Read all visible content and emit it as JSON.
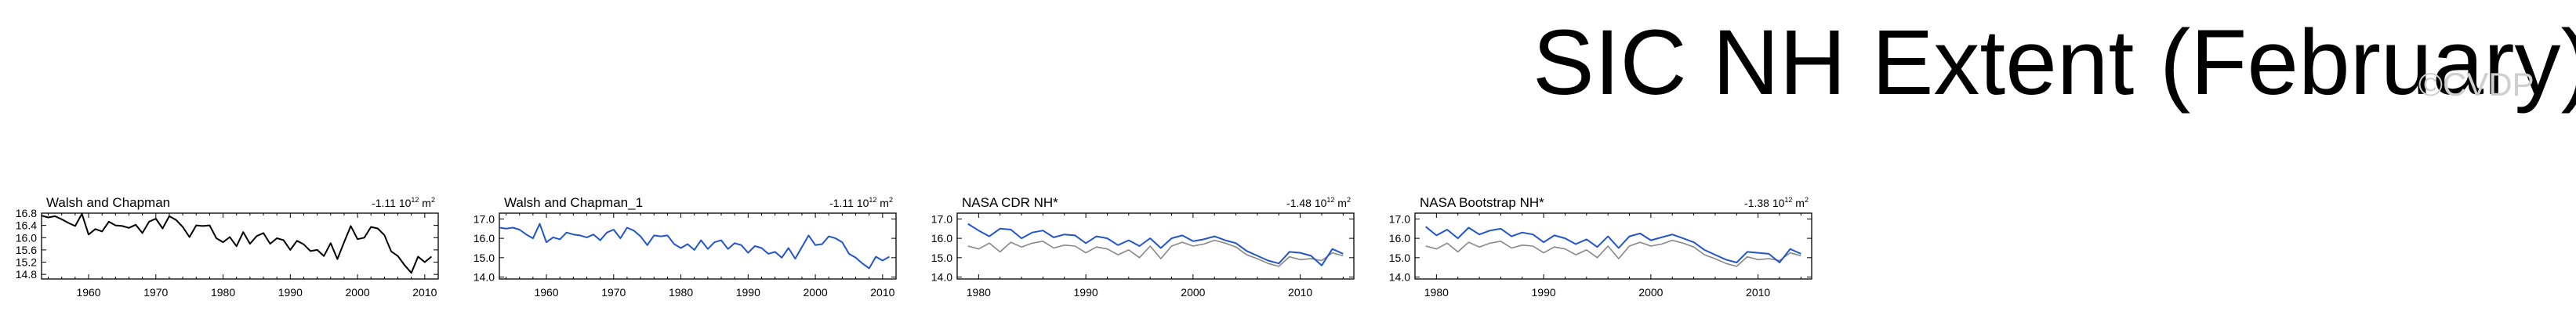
{
  "page": {
    "title": "SIC NH Extent (February)",
    "watermark": "©CVDP"
  },
  "chart_data": [
    {
      "type": "line",
      "title": "Walsh and Chapman",
      "trend": "-1.11 10",
      "trend_exp": "12",
      "trend_unit": "m",
      "trend_unit_exp": "2",
      "xlim": [
        1953,
        2012
      ],
      "ylim": [
        14.65,
        16.8
      ],
      "xticks": [
        1960,
        1970,
        1980,
        1990,
        2000,
        2010
      ],
      "yticks": [
        "16.8",
        "16.4",
        "16.0",
        "15.6",
        "15.2",
        "14.8"
      ],
      "series": [
        {
          "color": "#000000",
          "x": [
            1953,
            1954,
            1955,
            1956,
            1957,
            1958,
            1959,
            1960,
            1961,
            1962,
            1963,
            1964,
            1965,
            1966,
            1967,
            1968,
            1969,
            1970,
            1971,
            1972,
            1973,
            1974,
            1975,
            1976,
            1977,
            1978,
            1979,
            1980,
            1981,
            1982,
            1983,
            1984,
            1985,
            1986,
            1987,
            1988,
            1989,
            1990,
            1991,
            1992,
            1993,
            1994,
            1995,
            1996,
            1997,
            1998,
            1999,
            2000,
            2001,
            2002,
            2003,
            2004,
            2005,
            2006,
            2007,
            2008,
            2009,
            2010,
            2011
          ],
          "y": [
            16.72,
            16.66,
            16.7,
            16.6,
            16.48,
            16.38,
            16.78,
            16.1,
            16.28,
            16.2,
            16.52,
            16.4,
            16.38,
            16.32,
            16.42,
            16.15,
            16.52,
            16.62,
            16.3,
            16.7,
            16.58,
            16.35,
            16.02,
            16.4,
            16.38,
            16.4,
            15.98,
            15.85,
            16.02,
            15.72,
            16.18,
            15.8,
            16.05,
            16.15,
            15.8,
            15.98,
            15.92,
            15.6,
            15.9,
            15.78,
            15.56,
            15.6,
            15.4,
            15.82,
            15.3,
            15.85,
            16.38,
            15.95,
            16.0,
            16.35,
            16.3,
            16.08,
            15.55,
            15.4,
            15.1,
            14.85,
            15.38,
            15.2,
            15.38
          ]
        }
      ]
    },
    {
      "type": "line",
      "title": "Walsh and Chapman_1",
      "trend": "-1.11 10",
      "trend_exp": "12",
      "trend_unit": "m",
      "trend_unit_exp": "2",
      "xlim": [
        1953,
        2012
      ],
      "ylim": [
        13.9,
        17.3
      ],
      "xticks": [
        1960,
        1970,
        1980,
        1990,
        2000,
        2010
      ],
      "yticks": [
        "17.0",
        "16.0",
        "15.0",
        "14.0"
      ],
      "series": [
        {
          "color": "#2255cc",
          "x": [
            1953,
            1954,
            1955,
            1956,
            1957,
            1958,
            1959,
            1960,
            1961,
            1962,
            1963,
            1964,
            1965,
            1966,
            1967,
            1968,
            1969,
            1970,
            1971,
            1972,
            1973,
            1974,
            1975,
            1976,
            1977,
            1978,
            1979,
            1980,
            1981,
            1982,
            1983,
            1984,
            1985,
            1986,
            1987,
            1988,
            1989,
            1990,
            1991,
            1992,
            1993,
            1994,
            1995,
            1996,
            1997,
            1998,
            1999,
            2000,
            2001,
            2002,
            2003,
            2004,
            2005,
            2006,
            2007,
            2008,
            2009,
            2010,
            2011
          ],
          "y": [
            16.55,
            16.5,
            16.55,
            16.45,
            16.2,
            16.0,
            16.75,
            15.8,
            16.05,
            15.95,
            16.3,
            16.2,
            16.15,
            16.05,
            16.2,
            15.9,
            16.3,
            16.45,
            16.0,
            16.55,
            16.4,
            16.1,
            15.65,
            16.15,
            16.1,
            16.15,
            15.7,
            15.5,
            15.7,
            15.4,
            15.9,
            15.45,
            15.8,
            15.9,
            15.45,
            15.75,
            15.65,
            15.25,
            15.6,
            15.5,
            15.2,
            15.3,
            15.0,
            15.5,
            14.95,
            15.55,
            16.15,
            15.65,
            15.7,
            16.1,
            16.0,
            15.8,
            15.2,
            15.0,
            14.7,
            14.45,
            15.05,
            14.85,
            15.05
          ]
        }
      ]
    },
    {
      "type": "line",
      "title": "NASA CDR NH*",
      "trend": "-1.48 10",
      "trend_exp": "12",
      "trend_unit": "m",
      "trend_unit_exp": "2",
      "xlim": [
        1978,
        2015
      ],
      "ylim": [
        13.9,
        17.3
      ],
      "xticks": [
        1980,
        1990,
        2000,
        2010
      ],
      "yticks": [
        "17.0",
        "16.0",
        "15.0",
        "14.0"
      ],
      "series": [
        {
          "color": "#888888",
          "x": [
            1979,
            1980,
            1981,
            1982,
            1983,
            1984,
            1985,
            1986,
            1987,
            1988,
            1989,
            1990,
            1991,
            1992,
            1993,
            1994,
            1995,
            1996,
            1997,
            1998,
            1999,
            2000,
            2001,
            2002,
            2003,
            2004,
            2005,
            2006,
            2007,
            2008,
            2009,
            2010,
            2011,
            2012,
            2013,
            2014
          ],
          "y": [
            15.6,
            15.45,
            15.75,
            15.3,
            15.8,
            15.55,
            15.75,
            15.85,
            15.5,
            15.65,
            15.6,
            15.25,
            15.55,
            15.45,
            15.15,
            15.4,
            15.0,
            15.6,
            14.95,
            15.6,
            15.8,
            15.6,
            15.7,
            15.9,
            15.75,
            15.55,
            15.15,
            14.95,
            14.7,
            14.55,
            15.05,
            14.9,
            14.95,
            14.85,
            15.25,
            15.1
          ]
        },
        {
          "color": "#2255cc",
          "x": [
            1979,
            1980,
            1981,
            1982,
            1983,
            1984,
            1985,
            1986,
            1987,
            1988,
            1989,
            1990,
            1991,
            1992,
            1993,
            1994,
            1995,
            1996,
            1997,
            1998,
            1999,
            2000,
            2001,
            2002,
            2003,
            2004,
            2005,
            2006,
            2007,
            2008,
            2009,
            2010,
            2011,
            2012,
            2013,
            2014
          ],
          "y": [
            16.75,
            16.4,
            16.1,
            16.5,
            16.45,
            16.0,
            16.3,
            16.4,
            16.05,
            16.2,
            16.15,
            15.75,
            16.1,
            16.0,
            15.65,
            15.9,
            15.6,
            16.0,
            15.5,
            16.0,
            16.15,
            15.85,
            15.95,
            16.1,
            15.9,
            15.75,
            15.35,
            15.1,
            14.85,
            14.7,
            15.3,
            15.25,
            15.1,
            14.6,
            15.45,
            15.2
          ]
        }
      ]
    },
    {
      "type": "line",
      "title": "NASA Bootstrap NH*",
      "trend": "-1.38 10",
      "trend_exp": "12",
      "trend_unit": "m",
      "trend_unit_exp": "2",
      "xlim": [
        1978,
        2015
      ],
      "ylim": [
        13.9,
        17.3
      ],
      "xticks": [
        1980,
        1990,
        2000,
        2010
      ],
      "yticks": [
        "17.0",
        "16.0",
        "15.0",
        "14.0"
      ],
      "series": [
        {
          "color": "#888888",
          "x": [
            1979,
            1980,
            1981,
            1982,
            1983,
            1984,
            1985,
            1986,
            1987,
            1988,
            1989,
            1990,
            1991,
            1992,
            1993,
            1994,
            1995,
            1996,
            1997,
            1998,
            1999,
            2000,
            2001,
            2002,
            2003,
            2004,
            2005,
            2006,
            2007,
            2008,
            2009,
            2010,
            2011,
            2012,
            2013,
            2014
          ],
          "y": [
            15.6,
            15.45,
            15.75,
            15.3,
            15.8,
            15.55,
            15.75,
            15.85,
            15.5,
            15.65,
            15.6,
            15.25,
            15.55,
            15.45,
            15.15,
            15.4,
            15.0,
            15.6,
            14.95,
            15.6,
            15.8,
            15.6,
            15.7,
            15.9,
            15.75,
            15.55,
            15.15,
            14.95,
            14.7,
            14.55,
            15.05,
            14.9,
            14.95,
            14.85,
            15.25,
            15.1
          ]
        },
        {
          "color": "#2255cc",
          "x": [
            1979,
            1980,
            1981,
            1982,
            1983,
            1984,
            1985,
            1986,
            1987,
            1988,
            1989,
            1990,
            1991,
            1992,
            1993,
            1994,
            1995,
            1996,
            1997,
            1998,
            1999,
            2000,
            2001,
            2002,
            2003,
            2004,
            2005,
            2006,
            2007,
            2008,
            2009,
            2010,
            2011,
            2012,
            2013,
            2014
          ],
          "y": [
            16.6,
            16.15,
            16.45,
            16.0,
            16.55,
            16.2,
            16.4,
            16.5,
            16.1,
            16.3,
            16.2,
            15.8,
            16.15,
            16.0,
            15.7,
            15.95,
            15.55,
            16.1,
            15.5,
            16.1,
            16.25,
            15.9,
            16.05,
            16.2,
            16.0,
            15.8,
            15.4,
            15.15,
            14.9,
            14.75,
            15.3,
            15.25,
            15.2,
            14.75,
            15.45,
            15.2
          ]
        }
      ]
    }
  ]
}
